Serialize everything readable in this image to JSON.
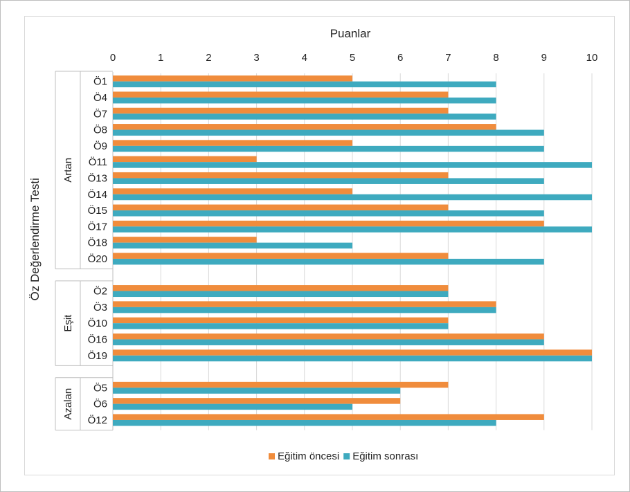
{
  "chart_data": {
    "type": "bar",
    "orientation": "horizontal",
    "title": "Puanlar",
    "xlabel": "Puanlar",
    "ylabel": "Öz Değerlendirme Testi",
    "xlim": [
      0,
      10
    ],
    "x_ticks": [
      "0",
      "1",
      "2",
      "3",
      "4",
      "5",
      "6",
      "7",
      "8",
      "9",
      "10"
    ],
    "grid": true,
    "legend_position": "bottom",
    "colors": {
      "before": "#f08c3c",
      "after": "#3eaabf"
    },
    "groups": [
      {
        "name": "Artan",
        "categories": [
          "Ö1",
          "Ö4",
          "Ö7",
          "Ö8",
          "Ö9",
          "Ö11",
          "Ö13",
          "Ö14",
          "Ö15",
          "Ö17",
          "Ö18",
          "Ö20"
        ]
      },
      {
        "name": "Eşit",
        "categories": [
          "Ö2",
          "Ö3",
          "Ö10",
          "Ö16",
          "Ö19"
        ]
      },
      {
        "name": "Azalan",
        "categories": [
          "Ö5",
          "Ö6",
          "Ö12"
        ]
      }
    ],
    "series": [
      {
        "name": "Eğitim öncesi",
        "values": [
          5,
          7,
          7,
          8,
          5,
          3,
          7,
          5,
          7,
          9,
          3,
          7,
          7,
          8,
          7,
          9,
          10,
          7,
          6,
          9
        ]
      },
      {
        "name": "Eğitim sonrası",
        "values": [
          8,
          8,
          8,
          9,
          9,
          10,
          9,
          10,
          9,
          10,
          5,
          9,
          7,
          8,
          7,
          9,
          10,
          6,
          5,
          8
        ]
      }
    ]
  }
}
